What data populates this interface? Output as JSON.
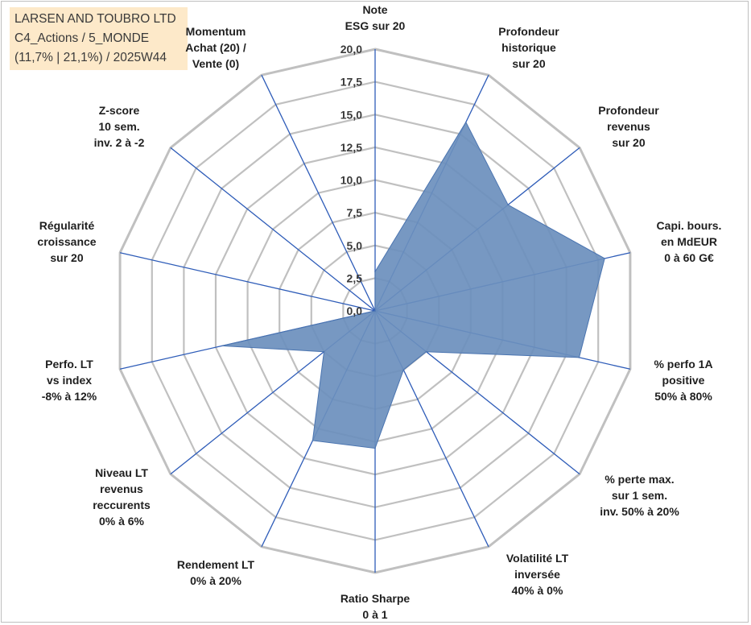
{
  "info": {
    "line1": "LARSEN AND TOUBRO LTD",
    "line2": "C4_Actions / 5_MONDE",
    "line3": "(11,7% | 21,1%) / 2025W44"
  },
  "colors": {
    "fill": "#6b8fbd",
    "fill_stroke": "#4a74b0",
    "axis": "#2e5cb8",
    "grid": "#c0c0c0",
    "infobox": "#fde9c9"
  },
  "chart_data": {
    "type": "radar",
    "rmin": 0,
    "rmax": 20,
    "grid_step": 2.5,
    "ticks": [
      "0,0",
      "2,5",
      "5,0",
      "7,5",
      "10,0",
      "12,5",
      "15,0",
      "17,5",
      "20,0"
    ],
    "axes": [
      {
        "label": [
          "Note",
          "ESG sur 20"
        ],
        "value": 3.0
      },
      {
        "label": [
          "Profondeur",
          "historique",
          "sur 20"
        ],
        "value": 16.0
      },
      {
        "label": [
          "Profondeur",
          "revenus",
          "sur 20"
        ],
        "value": 13.0
      },
      {
        "label": [
          "Capi. bours.",
          "en MdEUR",
          "0 à 60 G€"
        ],
        "value": 18.0
      },
      {
        "label": [
          "% perfo 1A",
          "positive",
          "50% à 80%"
        ],
        "value": 16.0
      },
      {
        "label": [
          "% perte max.",
          "sur 1 sem.",
          "inv. 50% à 20%"
        ],
        "value": 5.0
      },
      {
        "label": [
          "Volatilité LT",
          "inversée",
          "40% à 0%"
        ],
        "value": 5.0
      },
      {
        "label": [
          "Ratio Sharpe",
          "0 à 1"
        ],
        "value": 10.5
      },
      {
        "label": [
          "Rendement LT",
          "0% à 20%"
        ],
        "value": 11.0
      },
      {
        "label": [
          "Niveau LT",
          "revenus",
          "reccurents",
          "0% à 6%"
        ],
        "value": 5.0
      },
      {
        "label": [
          "Perfo. LT",
          "vs index",
          "-8% à 12%"
        ],
        "value": 12.0
      },
      {
        "label": [
          "Régularité",
          "croissance",
          "sur 20"
        ],
        "value": 0.0
      },
      {
        "label": [
          "Z-score",
          "10 sem.",
          "inv. 2 à -2"
        ],
        "value": 0.0
      },
      {
        "label": [
          "Momentum",
          "Achat (20) /",
          "Vente (0)"
        ],
        "value": 0.0
      }
    ]
  }
}
